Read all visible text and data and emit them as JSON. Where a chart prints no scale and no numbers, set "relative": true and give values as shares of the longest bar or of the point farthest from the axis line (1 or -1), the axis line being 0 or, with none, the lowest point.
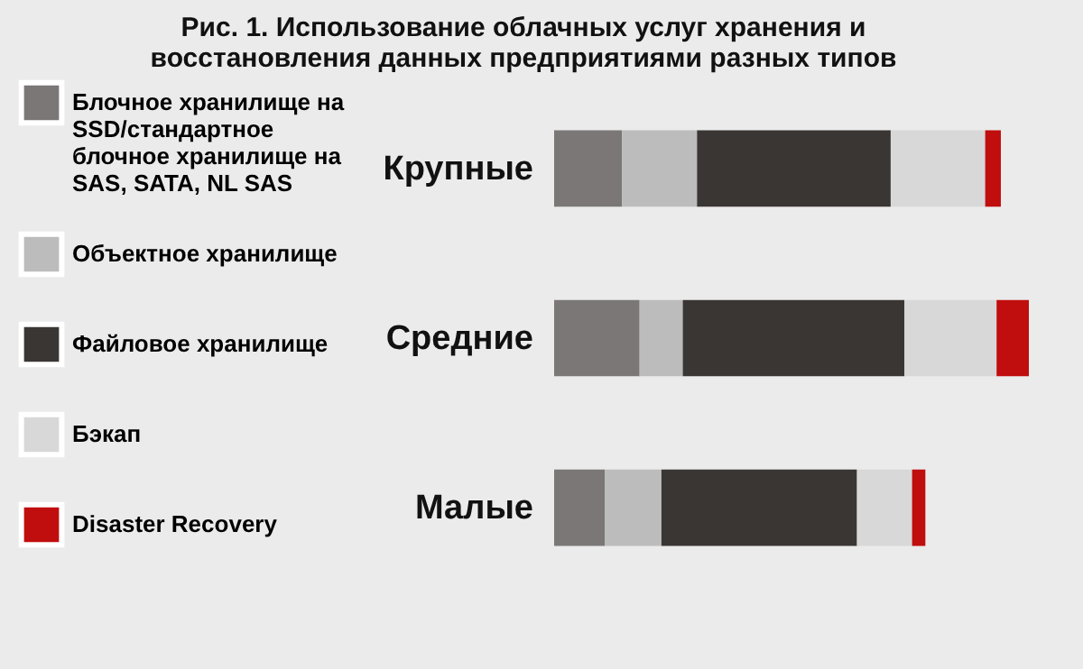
{
  "chart_data": {
    "type": "bar",
    "orientation": "horizontal",
    "stacked": true,
    "relative": true,
    "title": "Рис. 1. Использование облачных услуг хранения и восстановления данных предприятиями разных типов",
    "categories": [
      "Крупные",
      "Средние",
      "Малые"
    ],
    "legend": "left",
    "series": [
      {
        "name": "Блочное хранилище на SSD/стандартное блочное хранилище на SAS, SATA, NL SAS",
        "color": "#7a7776",
        "values": [
          0.143,
          0.18,
          0.107
        ]
      },
      {
        "name": "Объектное хранилище",
        "color": "#bcbcbc",
        "values": [
          0.158,
          0.091,
          0.119
        ]
      },
      {
        "name": "Файловое хранилище",
        "color": "#3a3633",
        "values": [
          0.408,
          0.467,
          0.412
        ]
      },
      {
        "name": "Бэкап",
        "color": "#d8d8d8",
        "values": [
          0.199,
          0.194,
          0.116
        ]
      },
      {
        "name": "Disaster Recovery",
        "color": "#c00d0d",
        "values": [
          0.033,
          0.068,
          0.028
        ]
      }
    ]
  }
}
